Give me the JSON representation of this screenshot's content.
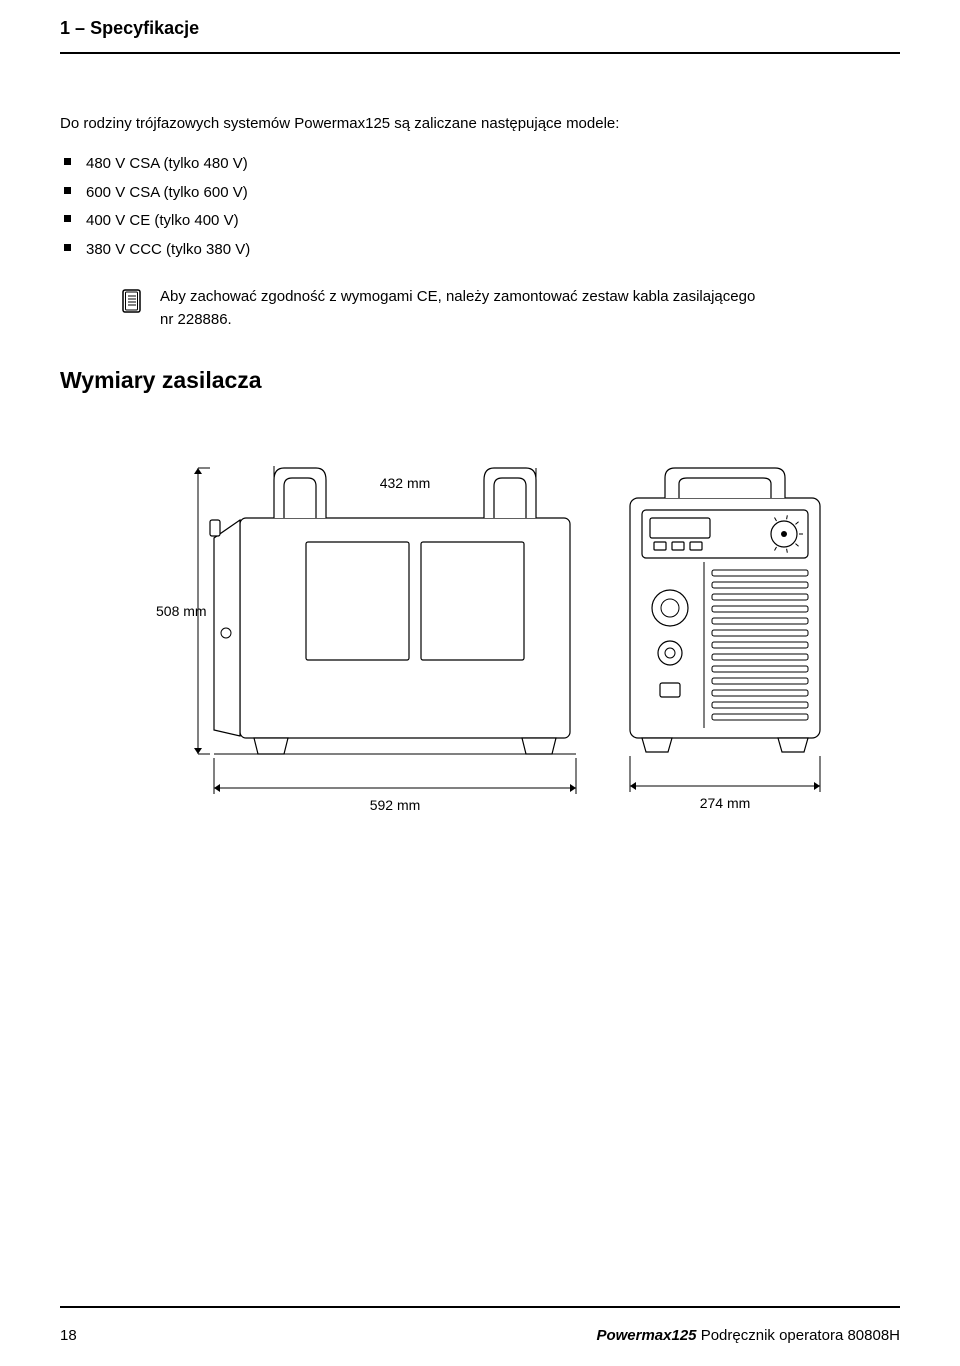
{
  "header": {
    "section_number": "1",
    "section_dash": "–",
    "section_title": "Specyfikacje"
  },
  "intro": "Do rodziny trójfazowych systemów Powermax125 są zaliczane następujące modele:",
  "bullets": [
    "480 V CSA (tylko 480 V)",
    "600 V CSA (tylko 600 V)",
    "400 V CE (tylko 400 V)",
    "380 V CCC (tylko 380 V)"
  ],
  "note": {
    "line1": "Aby zachować zgodność z wymogami CE, należy zamontować zestaw kabla zasilającego",
    "line2": "nr 228886."
  },
  "section_heading": "Wymiary zasilacza",
  "diagram": {
    "dim_top": "432 mm",
    "dim_left": "508 mm",
    "dim_bottom_left": "592 mm",
    "dim_bottom_right": "274 mm",
    "stroke": "#000000",
    "stroke_width": 1.2,
    "fill": "#ffffff"
  },
  "footer": {
    "page": "18",
    "product": "Powermax125",
    "tail": "Podręcznik operatora  80808H"
  }
}
